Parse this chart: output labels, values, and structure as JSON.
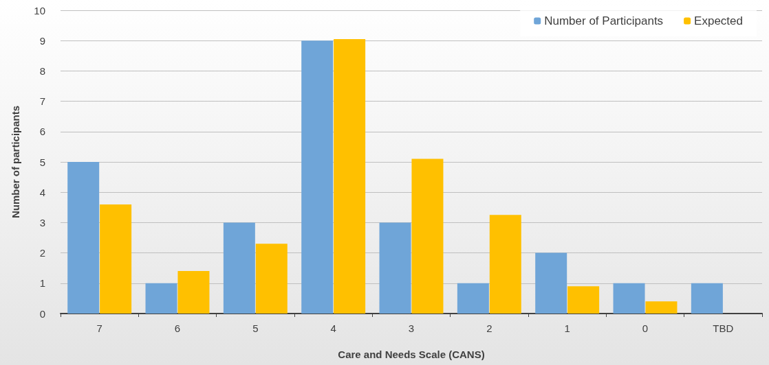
{
  "chart_data": {
    "type": "bar",
    "xlabel": "Care and Needs Scale (CANS)",
    "ylabel": "Number of participants",
    "categories": [
      "7",
      "6",
      "5",
      "4",
      "3",
      "2",
      "1",
      "0",
      "TBD"
    ],
    "series": [
      {
        "name": "Number of Participants",
        "color": "#6fa5d8",
        "values": [
          5,
          1,
          3,
          9,
          3,
          1,
          2,
          1,
          1
        ]
      },
      {
        "name": "Expected",
        "color": "#ffc000",
        "values": [
          3.6,
          1.4,
          2.3,
          9.05,
          5.1,
          3.25,
          0.9,
          0.4,
          null
        ]
      }
    ],
    "ylim": [
      0,
      10
    ],
    "yticks": [
      0,
      1,
      2,
      3,
      4,
      5,
      6,
      7,
      8,
      9,
      10
    ],
    "grid": "y",
    "legend": "top right"
  }
}
